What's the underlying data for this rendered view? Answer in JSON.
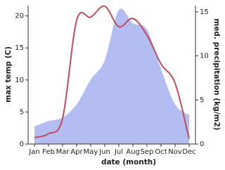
{
  "chart_data": {
    "type": "line",
    "x_label": "date (month)",
    "y_label": "max temp (C)",
    "y2_label": "med. precipitation (kg/m2)",
    "categories": [
      "Jan",
      "Feb",
      "Mar",
      "Apr",
      "May",
      "Jun",
      "Jul",
      "Aug",
      "Sep",
      "Oct",
      "Nov",
      "Dec"
    ],
    "series": [
      {
        "name": "max temp",
        "color": "#c24a5a",
        "values": [
          1.0,
          1.6,
          4.0,
          19.3,
          19.8,
          21.5,
          18.3,
          19.6,
          17.0,
          12.5,
          9.5,
          0.8
        ]
      },
      {
        "name": "precipitation",
        "color": "#b3bdf2",
        "axis": "y2",
        "area": true,
        "values": [
          2.0,
          2.6,
          3.0,
          4.5,
          7.3,
          9.5,
          15.2,
          13.7,
          13.0,
          8.5,
          4.5,
          3.3
        ]
      }
    ],
    "ylim": [
      0,
      21.6
    ],
    "yticks": [
      0,
      5,
      10,
      15,
      20
    ],
    "y2lim": [
      0,
      15.7
    ],
    "y2ticks": [
      0,
      5,
      10,
      15
    ]
  }
}
